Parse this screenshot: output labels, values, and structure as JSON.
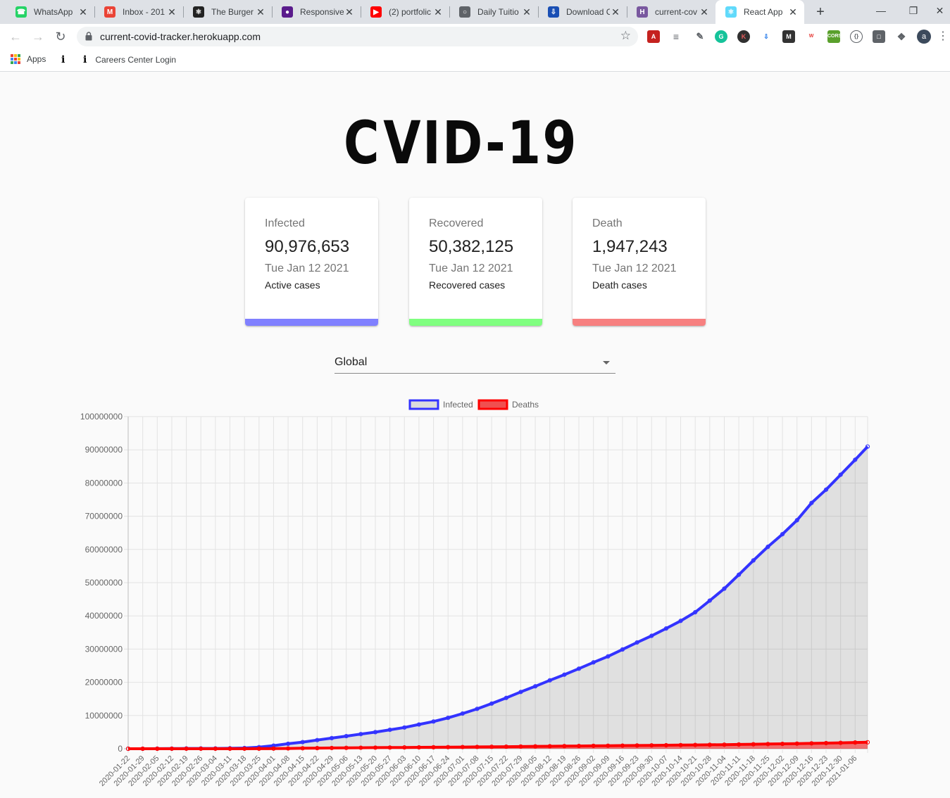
{
  "browser": {
    "tabs": [
      {
        "title": "WhatsApp",
        "icon": "whatsapp-icon",
        "color": "#25d366",
        "active": false
      },
      {
        "title": "Inbox - 201",
        "icon": "gmail-icon",
        "color": "#ea4335",
        "active": false
      },
      {
        "title": "The Burger",
        "icon": "react-icon",
        "color": "#222222",
        "active": false
      },
      {
        "title": "Responsive",
        "icon": "site-icon",
        "color": "#5a1b8c",
        "active": false
      },
      {
        "title": "(2) portfolic",
        "icon": "youtube-icon",
        "color": "#ff0000",
        "active": false
      },
      {
        "title": "Daily Tuitio",
        "icon": "globe-icon",
        "color": "#5f6368",
        "active": false
      },
      {
        "title": "Download C",
        "icon": "download-site-icon",
        "color": "#1a4fb4",
        "active": false
      },
      {
        "title": "current-cov",
        "icon": "heroku-icon",
        "color": "#79589f",
        "active": false
      },
      {
        "title": "React App",
        "icon": "react-icon",
        "color": "#61dafb",
        "active": true
      }
    ],
    "url": "current-covid-tracker.herokuapp.com",
    "bookmarks": [
      {
        "label": "Apps",
        "icon": "apps-grid-icon"
      },
      {
        "label": "",
        "icon": "ibm-icon"
      },
      {
        "label": "Careers Center Login",
        "icon": "ibm-icon"
      }
    ],
    "profile_initial": "a"
  },
  "header": {
    "logo_left": "C",
    "logo_right": "VID-19"
  },
  "cards": [
    {
      "label": "Infected",
      "value": "90,976,653",
      "date": "Tue Jan 12 2021",
      "desc": "Active cases",
      "color": "#8080ff"
    },
    {
      "label": "Recovered",
      "value": "50,382,125",
      "date": "Tue Jan 12 2021",
      "desc": "Recovered cases",
      "color": "#80ff80"
    },
    {
      "label": "Death",
      "value": "1,947,243",
      "date": "Tue Jan 12 2021",
      "desc": "Death cases",
      "color": "#f78080"
    }
  ],
  "country_select": {
    "value": "Global"
  },
  "chart_data": {
    "type": "line",
    "legend": [
      {
        "name": "Infected",
        "color": "#3333ff"
      },
      {
        "name": "Deaths",
        "color": "#ff0000"
      }
    ],
    "legend_position": "top",
    "ylim": [
      0,
      100000000
    ],
    "yticks": [
      "0",
      "10000000",
      "20000000",
      "30000000",
      "40000000",
      "50000000",
      "60000000",
      "70000000",
      "80000000",
      "90000000",
      "100000000"
    ],
    "xticks": [
      "2020-01-22",
      "2020-01-29",
      "2020-02-05",
      "2020-02-12",
      "2020-02-19",
      "2020-02-26",
      "2020-03-04",
      "2020-03-11",
      "2020-03-18",
      "2020-03-25",
      "2020-04-01",
      "2020-04-08",
      "2020-04-15",
      "2020-04-22",
      "2020-04-29",
      "2020-05-06",
      "2020-05-13",
      "2020-05-20",
      "2020-05-27",
      "2020-06-03",
      "2020-06-10",
      "2020-06-17",
      "2020-06-24",
      "2020-07-01",
      "2020-07-08",
      "2020-07-15",
      "2020-07-22",
      "2020-07-29",
      "2020-08-05",
      "2020-08-12",
      "2020-08-19",
      "2020-08-26",
      "2020-09-02",
      "2020-09-09",
      "2020-09-16",
      "2020-09-23",
      "2020-09-30",
      "2020-10-07",
      "2020-10-14",
      "2020-10-21",
      "2020-10-28",
      "2020-11-04",
      "2020-11-11",
      "2020-11-18",
      "2020-11-25",
      "2020-12-02",
      "2020-12-09",
      "2020-12-16",
      "2020-12-23",
      "2020-12-30",
      "2021-01-06"
    ],
    "series": [
      {
        "name": "Infected",
        "x": [
          "2020-01-22",
          "2020-01-29",
          "2020-02-05",
          "2020-02-12",
          "2020-02-19",
          "2020-02-26",
          "2020-03-04",
          "2020-03-11",
          "2020-03-18",
          "2020-03-25",
          "2020-04-01",
          "2020-04-08",
          "2020-04-15",
          "2020-04-22",
          "2020-04-29",
          "2020-05-06",
          "2020-05-13",
          "2020-05-20",
          "2020-05-27",
          "2020-06-03",
          "2020-06-10",
          "2020-06-17",
          "2020-06-24",
          "2020-07-01",
          "2020-07-08",
          "2020-07-15",
          "2020-07-22",
          "2020-07-29",
          "2020-08-05",
          "2020-08-12",
          "2020-08-19",
          "2020-08-26",
          "2020-09-02",
          "2020-09-09",
          "2020-09-16",
          "2020-09-23",
          "2020-09-30",
          "2020-10-07",
          "2020-10-14",
          "2020-10-21",
          "2020-10-28",
          "2020-11-04",
          "2020-11-11",
          "2020-11-18",
          "2020-11-25",
          "2020-12-02",
          "2020-12-09",
          "2020-12-16",
          "2020-12-23",
          "2020-12-30",
          "2021-01-06",
          "2021-01-12"
        ],
        "values": [
          600,
          6000,
          28000,
          45000,
          76000,
          83000,
          95000,
          126000,
          215000,
          470000,
          930000,
          1500000,
          2000000,
          2600000,
          3200000,
          3800000,
          4400000,
          5000000,
          5700000,
          6400000,
          7300000,
          8200000,
          9300000,
          10600000,
          12000000,
          13600000,
          15300000,
          17100000,
          18800000,
          20600000,
          22300000,
          24100000,
          26000000,
          27800000,
          29900000,
          32000000,
          34000000,
          36200000,
          38500000,
          41100000,
          44600000,
          48200000,
          52400000,
          56700000,
          60800000,
          64600000,
          68800000,
          74000000,
          78000000,
          82500000,
          87000000,
          90976653
        ]
      },
      {
        "name": "Deaths",
        "x": [
          "2020-01-22",
          "2020-01-29",
          "2020-02-05",
          "2020-02-12",
          "2020-02-19",
          "2020-02-26",
          "2020-03-04",
          "2020-03-11",
          "2020-03-18",
          "2020-03-25",
          "2020-04-01",
          "2020-04-08",
          "2020-04-15",
          "2020-04-22",
          "2020-04-29",
          "2020-05-06",
          "2020-05-13",
          "2020-05-20",
          "2020-05-27",
          "2020-06-03",
          "2020-06-10",
          "2020-06-17",
          "2020-06-24",
          "2020-07-01",
          "2020-07-08",
          "2020-07-15",
          "2020-07-22",
          "2020-07-29",
          "2020-08-05",
          "2020-08-12",
          "2020-08-19",
          "2020-08-26",
          "2020-09-02",
          "2020-09-09",
          "2020-09-16",
          "2020-09-23",
          "2020-09-30",
          "2020-10-07",
          "2020-10-14",
          "2020-10-21",
          "2020-10-28",
          "2020-11-04",
          "2020-11-11",
          "2020-11-18",
          "2020-11-25",
          "2020-12-02",
          "2020-12-09",
          "2020-12-16",
          "2020-12-23",
          "2020-12-30",
          "2021-01-06",
          "2021-01-12"
        ],
        "values": [
          17,
          132,
          563,
          1115,
          2247,
          2800,
          3300,
          4600,
          9000,
          21000,
          47000,
          90000,
          140000,
          185000,
          230000,
          265000,
          300000,
          330000,
          360000,
          390000,
          415000,
          445000,
          480000,
          515000,
          545000,
          580000,
          620000,
          665000,
          710000,
          750000,
          795000,
          835000,
          875000,
          910000,
          945000,
          980000,
          1015000,
          1055000,
          1095000,
          1140000,
          1185000,
          1235000,
          1290000,
          1350000,
          1410000,
          1475000,
          1545000,
          1620000,
          1700000,
          1780000,
          1880000,
          1947243
        ]
      }
    ]
  }
}
